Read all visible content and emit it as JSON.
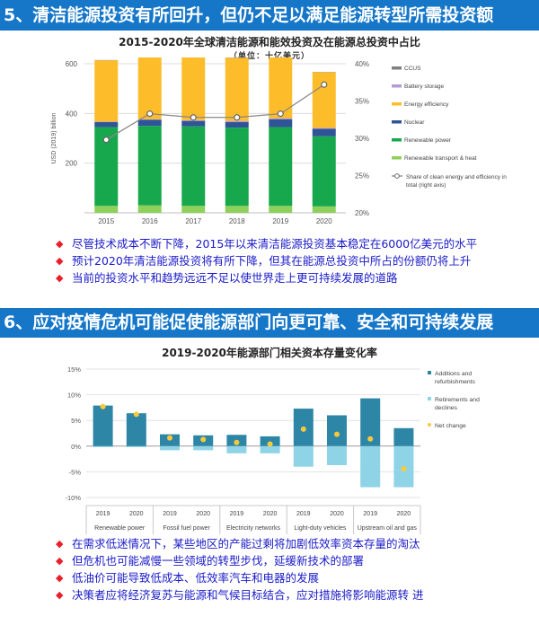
{
  "section1": {
    "title": "5、清洁能源投资有所回升，但仍不足以满足能源转型所需投资额"
  },
  "section2": {
    "title": "6、应对疫情危机可能促使能源部门向更可靠、安全和可持续发展"
  },
  "bullets1": [
    "尽管技术成本不断下降，2015年以来清洁能源投资基本稳定在6000亿美元的水平",
    "预计2020年清洁能源投资将有所下降，但其在能源总投资中所占的份额仍将上升",
    "当前的投资水平和趋势远远不足以使世界走上更可持续发展的道路"
  ],
  "bullets2": [
    "在需求低迷情况下，某些地区的产能过剩将加剧低效率资本存量的淘汰",
    "但危机也可能减慢一些领域的转型步伐，延缓新技术的部署",
    "低油价可能导致低成本、低效率汽车和电器的发展",
    "决策者应将经济复苏与能源和气候目标结合，应对措施将影响能源转  进  "
  ],
  "bullet_marker": "◆",
  "colors": {
    "banner": "#1677c9",
    "ccus": "#7f7f7f",
    "battery_storage": "#b69ad6",
    "energy_efficiency": "#fdbd2b",
    "nuclear": "#2f5596",
    "renewable_power": "#17a84e",
    "renewable_transport_heat": "#8ed05a",
    "share_line": "#888888",
    "additions": "#2e86a6",
    "retirements": "#8fd3e6",
    "net_change": "#f9c93d",
    "bullet_text": "#1a1ac8",
    "bullet_marker": "#e8202a"
  },
  "chart_data": [
    {
      "type": "bar",
      "stacked": true,
      "title": "2015-2020年全球清洁能源和能效投资及在能源总投资中占比",
      "subtitle": "（单位：十亿美元）",
      "ylabel": "USD (2019) billion",
      "categories": [
        "2015",
        "2016",
        "2017",
        "2018",
        "2019",
        "2020"
      ],
      "ylim": [
        0,
        600
      ],
      "yticks": [
        200,
        400,
        600
      ],
      "y2lim": [
        20,
        40
      ],
      "y2ticks": [
        "20%",
        "25%",
        "30%",
        "35%",
        "40%"
      ],
      "grid": true,
      "legend_position": "right",
      "series": [
        {
          "name": "Renewable transport & heat",
          "key": "renewable_transport_heat",
          "values": [
            28,
            30,
            28,
            28,
            28,
            26
          ]
        },
        {
          "name": "Renewable power",
          "key": "renewable_power",
          "values": [
            317,
            320,
            320,
            315,
            317,
            282
          ]
        },
        {
          "name": "Nuclear",
          "key": "nuclear",
          "values": [
            20,
            25,
            22,
            22,
            32,
            30
          ]
        },
        {
          "name": "Battery storage",
          "key": "battery_storage",
          "values": [
            2,
            2,
            3,
            5,
            4,
            4
          ]
        },
        {
          "name": "Energy efficiency",
          "key": "energy_efficiency",
          "values": [
            247,
            267,
            256,
            254,
            249,
            224
          ]
        },
        {
          "name": "CCUS",
          "key": "ccus",
          "values": [
            1,
            1,
            1,
            1,
            1,
            1
          ]
        }
      ],
      "line": {
        "name": "Share of clean energy and efficiency in total (right axis)",
        "values": [
          29.8,
          33.3,
          32.8,
          32.8,
          33.3,
          37.2
        ]
      }
    },
    {
      "type": "bar",
      "stacked": true,
      "title": "2019-2020年能源部门相关资本存量变化率",
      "categories": [
        "2019",
        "2020",
        "2019",
        "2020",
        "2019",
        "2020",
        "2019",
        "2020",
        "2019",
        "2020"
      ],
      "groups": [
        "Renewable power",
        "Fossil fuel power",
        "Electricity networks",
        "Light-duty vehicles",
        "Upstream oil and gas"
      ],
      "ylim": [
        -10,
        15
      ],
      "yticks": [
        "15%",
        "10%",
        "5%",
        "0%",
        "-5%",
        "-10%"
      ],
      "grid": true,
      "legend_position": "right",
      "series": [
        {
          "name": "Additions and refurbishments",
          "key": "additions",
          "values": [
            7.9,
            6.4,
            2.3,
            2.1,
            2.2,
            1.9,
            7.3,
            6.0,
            9.3,
            3.5
          ]
        },
        {
          "name": "Retirements and declines",
          "key": "retirements",
          "values": [
            -0.2,
            -0.2,
            -0.8,
            -0.8,
            -1.4,
            -1.4,
            -4.0,
            -3.7,
            -8.0,
            -8.0
          ]
        },
        {
          "name": "Net change",
          "key": "net_change",
          "values": [
            7.7,
            6.2,
            1.6,
            1.3,
            0.7,
            0.4,
            3.3,
            2.3,
            1.4,
            -4.4
          ]
        }
      ]
    }
  ]
}
